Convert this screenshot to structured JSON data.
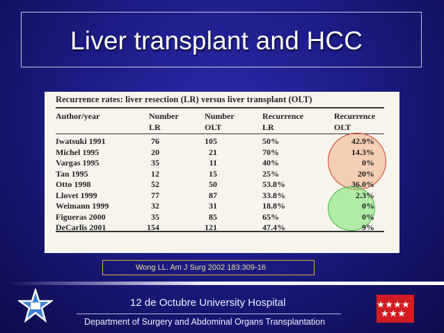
{
  "slide": {
    "title": "Liver transplant and HCC"
  },
  "table": {
    "header": "Recurrence rates: liver resection (LR) versus liver transplant (OLT)",
    "columns": [
      {
        "line1": "Author/year",
        "line2": ""
      },
      {
        "line1": "Number",
        "line2": "LR"
      },
      {
        "line1": "Number",
        "line2": "OLT"
      },
      {
        "line1": "Recurrence",
        "line2": "LR"
      },
      {
        "line1": "Recurrence",
        "line2": "OLT"
      }
    ],
    "rows": [
      {
        "author": "Iwatsuki 1991",
        "n_lr": "76",
        "n_olt": "105",
        "rec_lr": "50%",
        "rec_olt": "42.9%"
      },
      {
        "author": "Michel 1995",
        "n_lr": "20",
        "n_olt": "21",
        "rec_lr": "70%",
        "rec_olt": "14.3%"
      },
      {
        "author": "Vargas 1995",
        "n_lr": "35",
        "n_olt": "11",
        "rec_lr": "40%",
        "rec_olt": "0%"
      },
      {
        "author": "Tan 1995",
        "n_lr": "12",
        "n_olt": "15",
        "rec_lr": "25%",
        "rec_olt": "20%"
      },
      {
        "author": "Otto 1998",
        "n_lr": "52",
        "n_olt": "50",
        "rec_lr": "53.8%",
        "rec_olt": "36.0%"
      },
      {
        "author": "Llovet 1999",
        "n_lr": "77",
        "n_olt": "87",
        "rec_lr": "33.8%",
        "rec_olt": "2.3%"
      },
      {
        "author": "Weimann 1999",
        "n_lr": "32",
        "n_olt": "31",
        "rec_lr": "18.8%",
        "rec_olt": "0%"
      },
      {
        "author": "Figueras 2000",
        "n_lr": "35",
        "n_olt": "85",
        "rec_lr": "65%",
        "rec_olt": "0%"
      },
      {
        "author": "DeCarlis 2001",
        "n_lr": "154",
        "n_olt": "121",
        "rec_lr": "47.4%",
        "rec_olt": "9%"
      }
    ]
  },
  "citation": "Wong LL. Am J Surg 2002 183:309-16",
  "footer": {
    "hospital": "12 de Octubre  University Hospital",
    "department": "Department of Surgery and Abdominal Organs Transplantation"
  },
  "colors": {
    "background": "#1c1c86",
    "highlight_high": "#d53a2a",
    "highlight_low": "#48b04c",
    "flag": "#d21e23"
  }
}
